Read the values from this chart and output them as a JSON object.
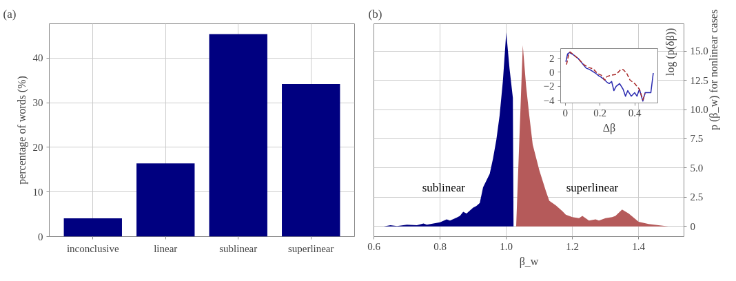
{
  "chart_data": [
    {
      "type": "bar",
      "title": "(a)",
      "ylabel": "percentage of words (%)",
      "categories": [
        "inconclusive",
        "linear",
        "sublinear",
        "superlinear"
      ],
      "values": [
        4.1,
        16.4,
        45.4,
        34.2
      ],
      "color": "#000080",
      "ylim": [
        0,
        47.7
      ],
      "yticks": [
        0,
        10,
        20,
        30,
        40
      ],
      "grid": true
    },
    {
      "type": "area",
      "title": "(b)",
      "xlabel": "β_w",
      "ylabel": "p (β_w) for nonlinear cases",
      "xlim": [
        0.6,
        1.537
      ],
      "xticks": [
        0.6,
        0.8,
        {
          "value": 1.0,
          "label": "1.0"
        },
        1.2,
        1.4
      ],
      "ylim": [
        -0.87,
        17.34
      ],
      "yticks": [
        0,
        2.5,
        {
          "value": 5,
          "label": "5.0"
        },
        7.5,
        {
          "value": 10,
          "label": "10.0"
        },
        12.5,
        {
          "value": 15,
          "label": "15.0"
        }
      ],
      "grid": true,
      "series": [
        {
          "name": "sublinear",
          "color": "#000080",
          "x": [
            0.6,
            0.63,
            0.65,
            0.67,
            0.7,
            0.73,
            0.75,
            0.76,
            0.78,
            0.8,
            0.82,
            0.83,
            0.85,
            0.86,
            0.87,
            0.88,
            0.9,
            0.91,
            0.92,
            0.93,
            0.95,
            0.96,
            0.97,
            0.98,
            0.99,
            1.0,
            1.01,
            1.02,
            1.022
          ],
          "values": [
            0.0,
            0.0,
            0.1,
            0.03,
            0.15,
            0.1,
            0.25,
            0.15,
            0.25,
            0.35,
            0.6,
            0.5,
            0.75,
            0.9,
            1.25,
            1.1,
            1.6,
            1.75,
            2.0,
            3.35,
            4.5,
            5.8,
            7.4,
            9.5,
            12.5,
            16.6,
            13.5,
            11.0,
            0.0
          ]
        },
        {
          "name": "superlinear",
          "color": "#b55a5a",
          "x": [
            1.03,
            1.05,
            1.06,
            1.07,
            1.08,
            1.1,
            1.12,
            1.13,
            1.15,
            1.17,
            1.18,
            1.2,
            1.22,
            1.23,
            1.25,
            1.27,
            1.28,
            1.3,
            1.32,
            1.33,
            1.35,
            1.37,
            1.4,
            1.43,
            1.46,
            1.49
          ],
          "values": [
            0.0,
            15.5,
            12.0,
            9.4,
            7.0,
            4.8,
            3.0,
            2.2,
            1.8,
            1.3,
            1.0,
            0.8,
            0.7,
            0.9,
            0.5,
            0.6,
            0.5,
            0.7,
            0.8,
            0.9,
            1.45,
            1.1,
            0.4,
            0.2,
            0.1,
            0.0
          ]
        }
      ]
    },
    {
      "type": "line",
      "xlabel": "Δβ",
      "ylabel": "log (p(δβ))",
      "xlim": [
        -0.027,
        0.533
      ],
      "xticks": [
        0,
        0.2,
        0.4
      ],
      "ylim": [
        -4.36,
        3.38
      ],
      "yticks": [
        {
          "value": -4,
          "label": "−4"
        },
        {
          "value": -2,
          "label": "−2"
        },
        0,
        2
      ],
      "grid": false,
      "series": [
        {
          "color": "#2a2ab0",
          "line_style": "solid",
          "x": [
            0.003,
            0.013,
            0.024,
            0.04,
            0.073,
            0.1,
            0.12,
            0.14,
            0.153,
            0.173,
            0.193,
            0.207,
            0.227,
            0.24,
            0.253,
            0.267,
            0.28,
            0.293,
            0.313,
            0.333,
            0.347,
            0.36,
            0.38,
            0.4,
            0.413,
            0.427,
            0.447,
            0.46,
            0.48,
            0.493,
            0.507
          ],
          "values": [
            1.5,
            2.6,
            2.8,
            2.6,
            2.0,
            1.2,
            0.6,
            0.4,
            0.2,
            -0.1,
            -0.5,
            -0.7,
            -1.1,
            -1.4,
            -1.6,
            -1.3,
            -2.6,
            -2.0,
            -1.6,
            -2.4,
            -3.4,
            -2.6,
            -3.4,
            -2.9,
            -3.4,
            -2.4,
            -4.1,
            -2.9,
            -2.9,
            -2.9,
            -0.1
          ]
        },
        {
          "color": "#a82828",
          "line_style": "dashed",
          "x": [
            0.007,
            0.02,
            0.027,
            0.053,
            0.08,
            0.107,
            0.133,
            0.16,
            0.187,
            0.207,
            0.227,
            0.24,
            0.267,
            0.293,
            0.32,
            0.333,
            0.353,
            0.373,
            0.4,
            0.427,
            0.447,
            0.46
          ],
          "values": [
            1.1,
            2.6,
            2.9,
            2.4,
            1.8,
            1.1,
            0.7,
            0.5,
            -0.2,
            -0.4,
            -1.1,
            -0.6,
            -0.4,
            -0.3,
            0.4,
            0.4,
            -0.1,
            -1.1,
            -1.6,
            -2.4,
            -3.9,
            -3.0
          ]
        }
      ]
    }
  ]
}
